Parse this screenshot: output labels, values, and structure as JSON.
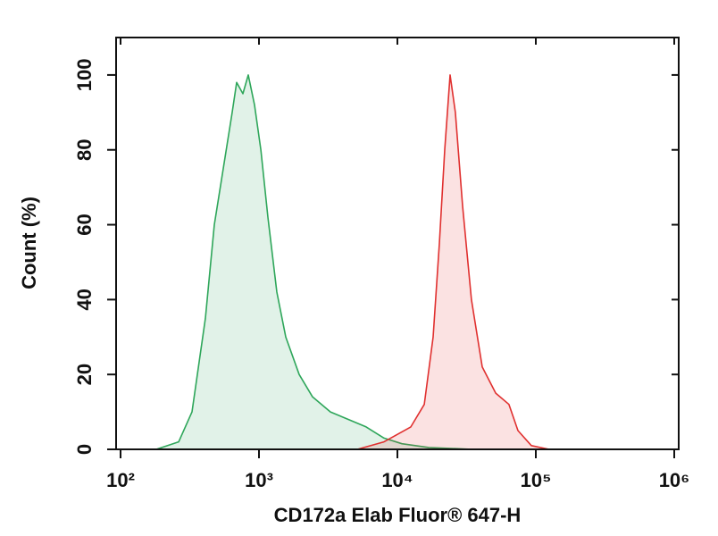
{
  "chart_data": {
    "type": "histogram-overlay",
    "x_label": "CD172a Elab Fluor® 647-H",
    "y_label": "Count (%)",
    "x_scale": "log",
    "xlim": [
      100,
      1000000
    ],
    "ylim": [
      0,
      110
    ],
    "xticks": [
      {
        "value": 100,
        "label": "10²"
      },
      {
        "value": 1000,
        "label": "10³"
      },
      {
        "value": 10000,
        "label": "10⁴"
      },
      {
        "value": 100000,
        "label": "10⁵"
      },
      {
        "value": 1000000,
        "label": "10⁶"
      }
    ],
    "yticks": [
      0,
      20,
      40,
      60,
      80,
      100
    ],
    "series": [
      {
        "color": "#2ea65a",
        "x": [
          181,
          263,
          328,
          410,
          476,
          552,
          640,
          690,
          765,
          837,
          929,
          1031,
          1161,
          1346,
          1562,
          1950,
          2438,
          3281,
          4416,
          5943,
          7998,
          10770,
          16820,
          35320
        ],
        "values": [
          0,
          2,
          10,
          35,
          60,
          75,
          90,
          98,
          95,
          100,
          92,
          80,
          62,
          42,
          30,
          20,
          14,
          10,
          8,
          6,
          3,
          1.5,
          0.5,
          0
        ]
      },
      {
        "color": "#e0302f",
        "x": [
          5129,
          7998,
          12500,
          15630,
          18110,
          20090,
          21980,
          24040,
          26240,
          29580,
          34280,
          41020,
          51290,
          63970,
          74300,
          92900,
          125000
        ],
        "values": [
          0,
          2,
          6,
          12,
          30,
          55,
          80,
          100,
          90,
          65,
          40,
          22,
          15,
          12,
          5,
          1,
          0
        ]
      }
    ]
  }
}
